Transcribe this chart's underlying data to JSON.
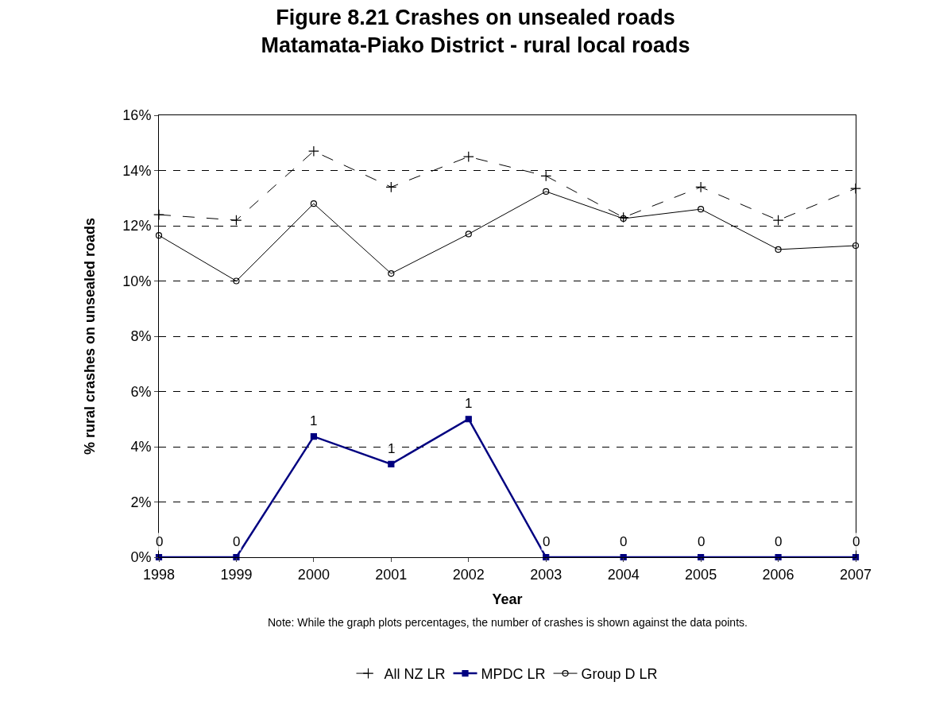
{
  "chart_data": {
    "type": "line",
    "title": "Figure 8.21 Crashes on unsealed roads\nMatamata-Piako District - rural local roads",
    "xlabel": "Year",
    "ylabel": "% rural crashes on unsealed roads",
    "x": [
      1998,
      1999,
      2000,
      2001,
      2002,
      2003,
      2004,
      2005,
      2006,
      2007
    ],
    "xlim": [
      1998,
      2007
    ],
    "xticks": [
      1998,
      1999,
      2000,
      2001,
      2002,
      2003,
      2004,
      2005,
      2006,
      2007
    ],
    "ylim": [
      0,
      16
    ],
    "yticks": [
      {
        "value": 0,
        "label": "0%"
      },
      {
        "value": 2,
        "label": "2%"
      },
      {
        "value": 4,
        "label": "4%"
      },
      {
        "value": 6,
        "label": "6%"
      },
      {
        "value": 8,
        "label": "8%"
      },
      {
        "value": 10,
        "label": "10%"
      },
      {
        "value": 12,
        "label": "12%"
      },
      {
        "value": 14,
        "label": "14%"
      },
      {
        "value": 16,
        "label": "16%"
      }
    ],
    "series": [
      {
        "name": "All NZ LR",
        "color": "#000000",
        "marker": "cross",
        "line_style": "dashed",
        "values": [
          12.4,
          12.2,
          14.7,
          13.4,
          14.5,
          13.8,
          12.3,
          13.4,
          12.2,
          13.35
        ]
      },
      {
        "name": "MPDC LR",
        "color": "#000080",
        "marker": "square",
        "line_style": "solid",
        "values": [
          0,
          0,
          4.37,
          3.37,
          5.0,
          0,
          0,
          0,
          0,
          0
        ]
      },
      {
        "name": "Group D LR",
        "color": "#000000",
        "marker": "circle",
        "line_style": "solid",
        "values": [
          11.65,
          10.0,
          12.8,
          10.27,
          11.7,
          13.24,
          12.26,
          12.6,
          11.14,
          11.28
        ]
      }
    ],
    "grid": "y",
    "legend": "bottom",
    "annotations": [
      {
        "text": "0",
        "x": 1998,
        "y": 0
      },
      {
        "text": "0",
        "x": 1999,
        "y": 0
      },
      {
        "text": "1",
        "x": 2000,
        "y": 4.37
      },
      {
        "text": "1",
        "x": 2001,
        "y": 3.37
      },
      {
        "text": "1",
        "x": 2002,
        "y": 5.0
      },
      {
        "text": "0",
        "x": 2003,
        "y": 0
      },
      {
        "text": "0",
        "x": 2004,
        "y": 0
      },
      {
        "text": "0",
        "x": 2005,
        "y": 0
      },
      {
        "text": "0",
        "x": 2006,
        "y": 0
      },
      {
        "text": "0",
        "x": 2007,
        "y": 0
      },
      "Note: While the graph plots percentages, the number of crashes is shown against the data points."
    ]
  }
}
